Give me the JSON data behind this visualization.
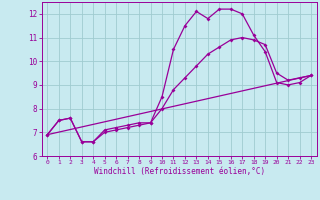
{
  "background_color": "#c8eaf0",
  "grid_color": "#a0ccd0",
  "line_color": "#990099",
  "xlabel": "Windchill (Refroidissement éolien,°C)",
  "xlim": [
    -0.5,
    23.5
  ],
  "ylim": [
    6,
    12.5
  ],
  "yticks": [
    6,
    7,
    8,
    9,
    10,
    11,
    12
  ],
  "xticks": [
    0,
    1,
    2,
    3,
    4,
    5,
    6,
    7,
    8,
    9,
    10,
    11,
    12,
    13,
    14,
    15,
    16,
    17,
    18,
    19,
    20,
    21,
    22,
    23
  ],
  "line1_x": [
    0,
    1,
    2,
    3,
    4,
    5,
    6,
    7,
    8,
    9,
    10,
    11,
    12,
    13,
    14,
    15,
    16,
    17,
    18,
    19,
    20,
    21,
    22,
    23
  ],
  "line1_y": [
    6.9,
    7.5,
    7.6,
    6.6,
    6.6,
    7.1,
    7.2,
    7.3,
    7.4,
    7.4,
    8.5,
    10.5,
    11.5,
    12.1,
    11.8,
    12.2,
    12.2,
    12.0,
    11.1,
    10.4,
    9.1,
    9.0,
    9.1,
    9.4
  ],
  "line2_x": [
    0,
    1,
    2,
    3,
    4,
    5,
    6,
    7,
    8,
    9,
    10,
    11,
    12,
    13,
    14,
    15,
    16,
    17,
    18,
    19,
    20,
    21,
    22,
    23
  ],
  "line2_y": [
    6.9,
    7.5,
    7.6,
    6.6,
    6.6,
    7.0,
    7.1,
    7.2,
    7.3,
    7.4,
    8.0,
    8.8,
    9.3,
    9.8,
    10.3,
    10.6,
    10.9,
    11.0,
    10.9,
    10.7,
    9.5,
    9.2,
    9.3,
    9.4
  ],
  "line3_x": [
    0,
    23
  ],
  "line3_y": [
    6.9,
    9.4
  ]
}
